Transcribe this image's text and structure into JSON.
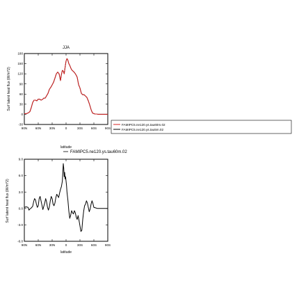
{
  "chart_data": [
    {
      "type": "line",
      "title": "JJA",
      "xlabel": "latitude",
      "ylabel": "Surf latent heat flux (W/m^2)",
      "xlim": [
        90,
        -90
      ],
      "ylim": [
        -30,
        180
      ],
      "x_ticks": [
        {
          "value": 90,
          "label": "90N"
        },
        {
          "value": 60,
          "label": "60N"
        },
        {
          "value": 30,
          "label": "30N"
        },
        {
          "value": 0,
          "label": "0"
        },
        {
          "value": -30,
          "label": "30S"
        },
        {
          "value": -60,
          "label": "60S"
        },
        {
          "value": -90,
          "label": "90S"
        }
      ],
      "y_ticks": [
        {
          "value": -30,
          "label": "-30"
        },
        {
          "value": 0,
          "label": "0"
        },
        {
          "value": 30,
          "label": "30"
        },
        {
          "value": 60,
          "label": "60"
        },
        {
          "value": 90,
          "label": "90"
        },
        {
          "value": 120,
          "label": "120"
        },
        {
          "value": 150,
          "label": "150"
        },
        {
          "value": 180,
          "label": "180"
        }
      ],
      "legend": {
        "placement": "right",
        "entries": [
          {
            "name": "FAMIPC5.ne120.ys.tau60m.02",
            "color": "#d62020"
          },
          {
            "name": "FAMIPC5.ne120.ys.tau5m.02",
            "color": "#000000"
          }
        ]
      },
      "series": [
        {
          "name": "FAMIPC5.ne120.ys.tau60m.02",
          "color": "#d62020",
          "x": [
            90,
            86,
            82,
            78,
            75,
            72,
            69,
            66,
            63,
            60,
            57,
            54,
            51,
            48,
            45,
            42,
            39,
            36,
            33,
            30,
            27,
            24,
            21,
            18,
            15,
            12,
            10,
            8,
            6,
            4,
            2,
            0,
            -2,
            -4,
            -6,
            -8,
            -10,
            -12,
            -15,
            -18,
            -21,
            -24,
            -27,
            -30,
            -33,
            -36,
            -39,
            -42,
            -45,
            -48,
            -51,
            -54,
            -57,
            -60,
            -63,
            -66,
            -69,
            -72,
            -75,
            -78,
            -81,
            -84,
            -87,
            -90
          ],
          "y": [
            2,
            2,
            4,
            8,
            20,
            35,
            42,
            42,
            40,
            45,
            45,
            42,
            44,
            48,
            48,
            55,
            62,
            74,
            80,
            87,
            95,
            107,
            120,
            125,
            120,
            100,
            118,
            130,
            128,
            120,
            140,
            158,
            165,
            160,
            150,
            145,
            138,
            132,
            128,
            124,
            118,
            110,
            88,
            78,
            62,
            58,
            58,
            54,
            50,
            40,
            28,
            14,
            4,
            2,
            1,
            1,
            0,
            0,
            0,
            0,
            0,
            0,
            0,
            0
          ]
        },
        {
          "name": "FAMIPC5.ne120.ys.tau5m.02",
          "color": "#000000",
          "x": [
            90,
            86,
            82,
            78,
            75,
            72,
            69,
            66,
            63,
            60,
            57,
            54,
            51,
            48,
            45,
            42,
            39,
            36,
            33,
            30,
            27,
            24,
            21,
            18,
            15,
            12,
            10,
            8,
            6,
            4,
            2,
            0,
            -2,
            -4,
            -6,
            -8,
            -10,
            -12,
            -15,
            -18,
            -21,
            -24,
            -27,
            -30,
            -33,
            -36,
            -39,
            -42,
            -45,
            -48,
            -51,
            -54,
            -57,
            -60,
            -63,
            -66,
            -69,
            -72,
            -75,
            -78,
            -81,
            -84,
            -87,
            -90
          ],
          "y": [
            2,
            2,
            4,
            8,
            20,
            35,
            42,
            42,
            40,
            45,
            45,
            42,
            44,
            48,
            48,
            55,
            62,
            74,
            80,
            87,
            95,
            107,
            120,
            125,
            120,
            100,
            118,
            130,
            128,
            120,
            140,
            158,
            165,
            160,
            150,
            145,
            138,
            132,
            128,
            124,
            118,
            110,
            88,
            78,
            62,
            58,
            58,
            54,
            50,
            40,
            28,
            14,
            4,
            2,
            1,
            1,
            0,
            0,
            0,
            0,
            0,
            0,
            0,
            0
          ]
        }
      ]
    },
    {
      "type": "line",
      "title": "",
      "xlabel": "latitude",
      "ylabel": "Surf latent heat flux (W/m^2)",
      "xlim": [
        90,
        -90
      ],
      "ylim": [
        -6,
        9
      ],
      "x_ticks": [
        {
          "value": 90,
          "label": "90N"
        },
        {
          "value": 60,
          "label": "60N"
        },
        {
          "value": 30,
          "label": "30N"
        },
        {
          "value": 0,
          "label": "0"
        },
        {
          "value": -30,
          "label": "30S"
        },
        {
          "value": -60,
          "label": "60S"
        },
        {
          "value": -90,
          "label": "90S"
        }
      ],
      "y_ticks": [
        {
          "value": -6,
          "label": "-6.0"
        },
        {
          "value": -3,
          "label": "-3.0"
        },
        {
          "value": 0,
          "label": "0.0"
        },
        {
          "value": 3,
          "label": "3.0"
        },
        {
          "value": 6,
          "label": "6.0"
        },
        {
          "value": 9,
          "label": "9.0"
        }
      ],
      "legend": {
        "placement": "top",
        "entries": [
          {
            "name": "FAMIPC5.ne120.ys.tau60m.02",
            "color": "#000000"
          }
        ]
      },
      "series": [
        {
          "name": "FAMIPC5.ne120.ys.tau60m.02",
          "color": "#000000",
          "x": [
            90,
            86,
            82,
            80,
            78,
            75,
            72,
            70,
            68,
            66,
            64,
            62,
            60,
            58,
            56,
            54,
            52,
            50,
            48,
            46,
            44,
            42,
            40,
            38,
            36,
            34,
            32,
            30,
            28,
            26,
            24,
            22,
            20,
            18,
            16,
            14,
            12,
            10,
            8,
            6,
            5,
            4,
            3,
            2,
            1,
            0,
            -1,
            -2,
            -4,
            -6,
            -8,
            -10,
            -12,
            -14,
            -16,
            -18,
            -20,
            -22,
            -24,
            -26,
            -28,
            -30,
            -32,
            -34,
            -36,
            -38,
            -40,
            -42,
            -44,
            -46,
            -48,
            -50,
            -52,
            -54,
            -56,
            -58,
            -60,
            -64,
            -68,
            -72,
            -76,
            -80,
            -84,
            -88,
            -90
          ],
          "y": [
            0.2,
            0.3,
            0.2,
            -0.3,
            -0.1,
            0.1,
            0.4,
            1.2,
            1.8,
            1.6,
            0.8,
            0.2,
            0.5,
            1.8,
            2.2,
            1.4,
            0.6,
            -0.2,
            0.4,
            1.0,
            1.8,
            1.2,
            0.2,
            -0.3,
            0.3,
            1.4,
            2.2,
            1.8,
            0.8,
            0.5,
            1.0,
            2.0,
            2.6,
            2.3,
            2.0,
            2.8,
            3.5,
            4.0,
            5.0,
            8.2,
            7.4,
            5.8,
            6.6,
            5.4,
            5.8,
            5.0,
            4.2,
            3.0,
            1.5,
            -0.5,
            -1.8,
            -1.2,
            -0.4,
            -0.8,
            -1.0,
            -0.4,
            -0.8,
            -1.6,
            -2.0,
            -1.3,
            -2.2,
            -3.2,
            -4.2,
            -4.0,
            -2.0,
            -0.5,
            0.5,
            0.8,
            1.4,
            1.0,
            0.2,
            -0.6,
            -0.1,
            0.8,
            1.4,
            0.9,
            0.2,
            0.1,
            0.0,
            0.0,
            0.0,
            0.0,
            0.0,
            0.0,
            0.0
          ]
        }
      ]
    }
  ]
}
